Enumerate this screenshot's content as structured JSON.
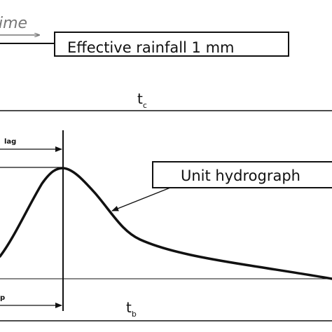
{
  "labels": {
    "time": "ime",
    "effective_rainfall": "Effective rainfall 1 mm",
    "tc_base": "t",
    "tc_sub": "c",
    "lag": "lag",
    "unit_hydrograph": "Unit hydrograph",
    "tp": "p",
    "tb_base": "t",
    "tb_sub": "b"
  },
  "colors": {
    "line": "#111111",
    "background": "#ffffff",
    "time_arrow": "#777777"
  }
}
